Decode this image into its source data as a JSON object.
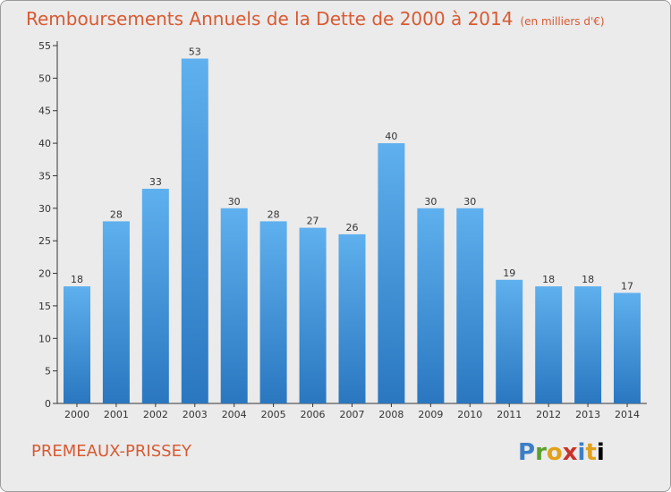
{
  "header": {
    "title": "Remboursements Annuels de la Dette de 2000 à 2014",
    "unit": "(en milliers d'€)"
  },
  "footer": {
    "commune": "PREMEAUX-PRISSEY",
    "logo_letters": [
      "P",
      "r",
      "o",
      "x",
      "i",
      "t",
      "i"
    ]
  },
  "colors": {
    "title": "#d85a32",
    "bar_top": "#5fb0ee",
    "bar_bottom": "#2a77c0"
  },
  "chart_data": {
    "type": "bar",
    "categories": [
      "2000",
      "2001",
      "2002",
      "2003",
      "2004",
      "2005",
      "2006",
      "2007",
      "2008",
      "2009",
      "2010",
      "2011",
      "2012",
      "2013",
      "2014"
    ],
    "values": [
      18,
      28,
      33,
      53,
      30,
      28,
      27,
      26,
      40,
      30,
      30,
      19,
      18,
      18,
      17
    ],
    "ylim": [
      0,
      55
    ],
    "yticks": [
      0,
      5,
      10,
      15,
      20,
      25,
      30,
      35,
      40,
      45,
      50,
      55
    ],
    "grid": false,
    "legend": "none"
  }
}
